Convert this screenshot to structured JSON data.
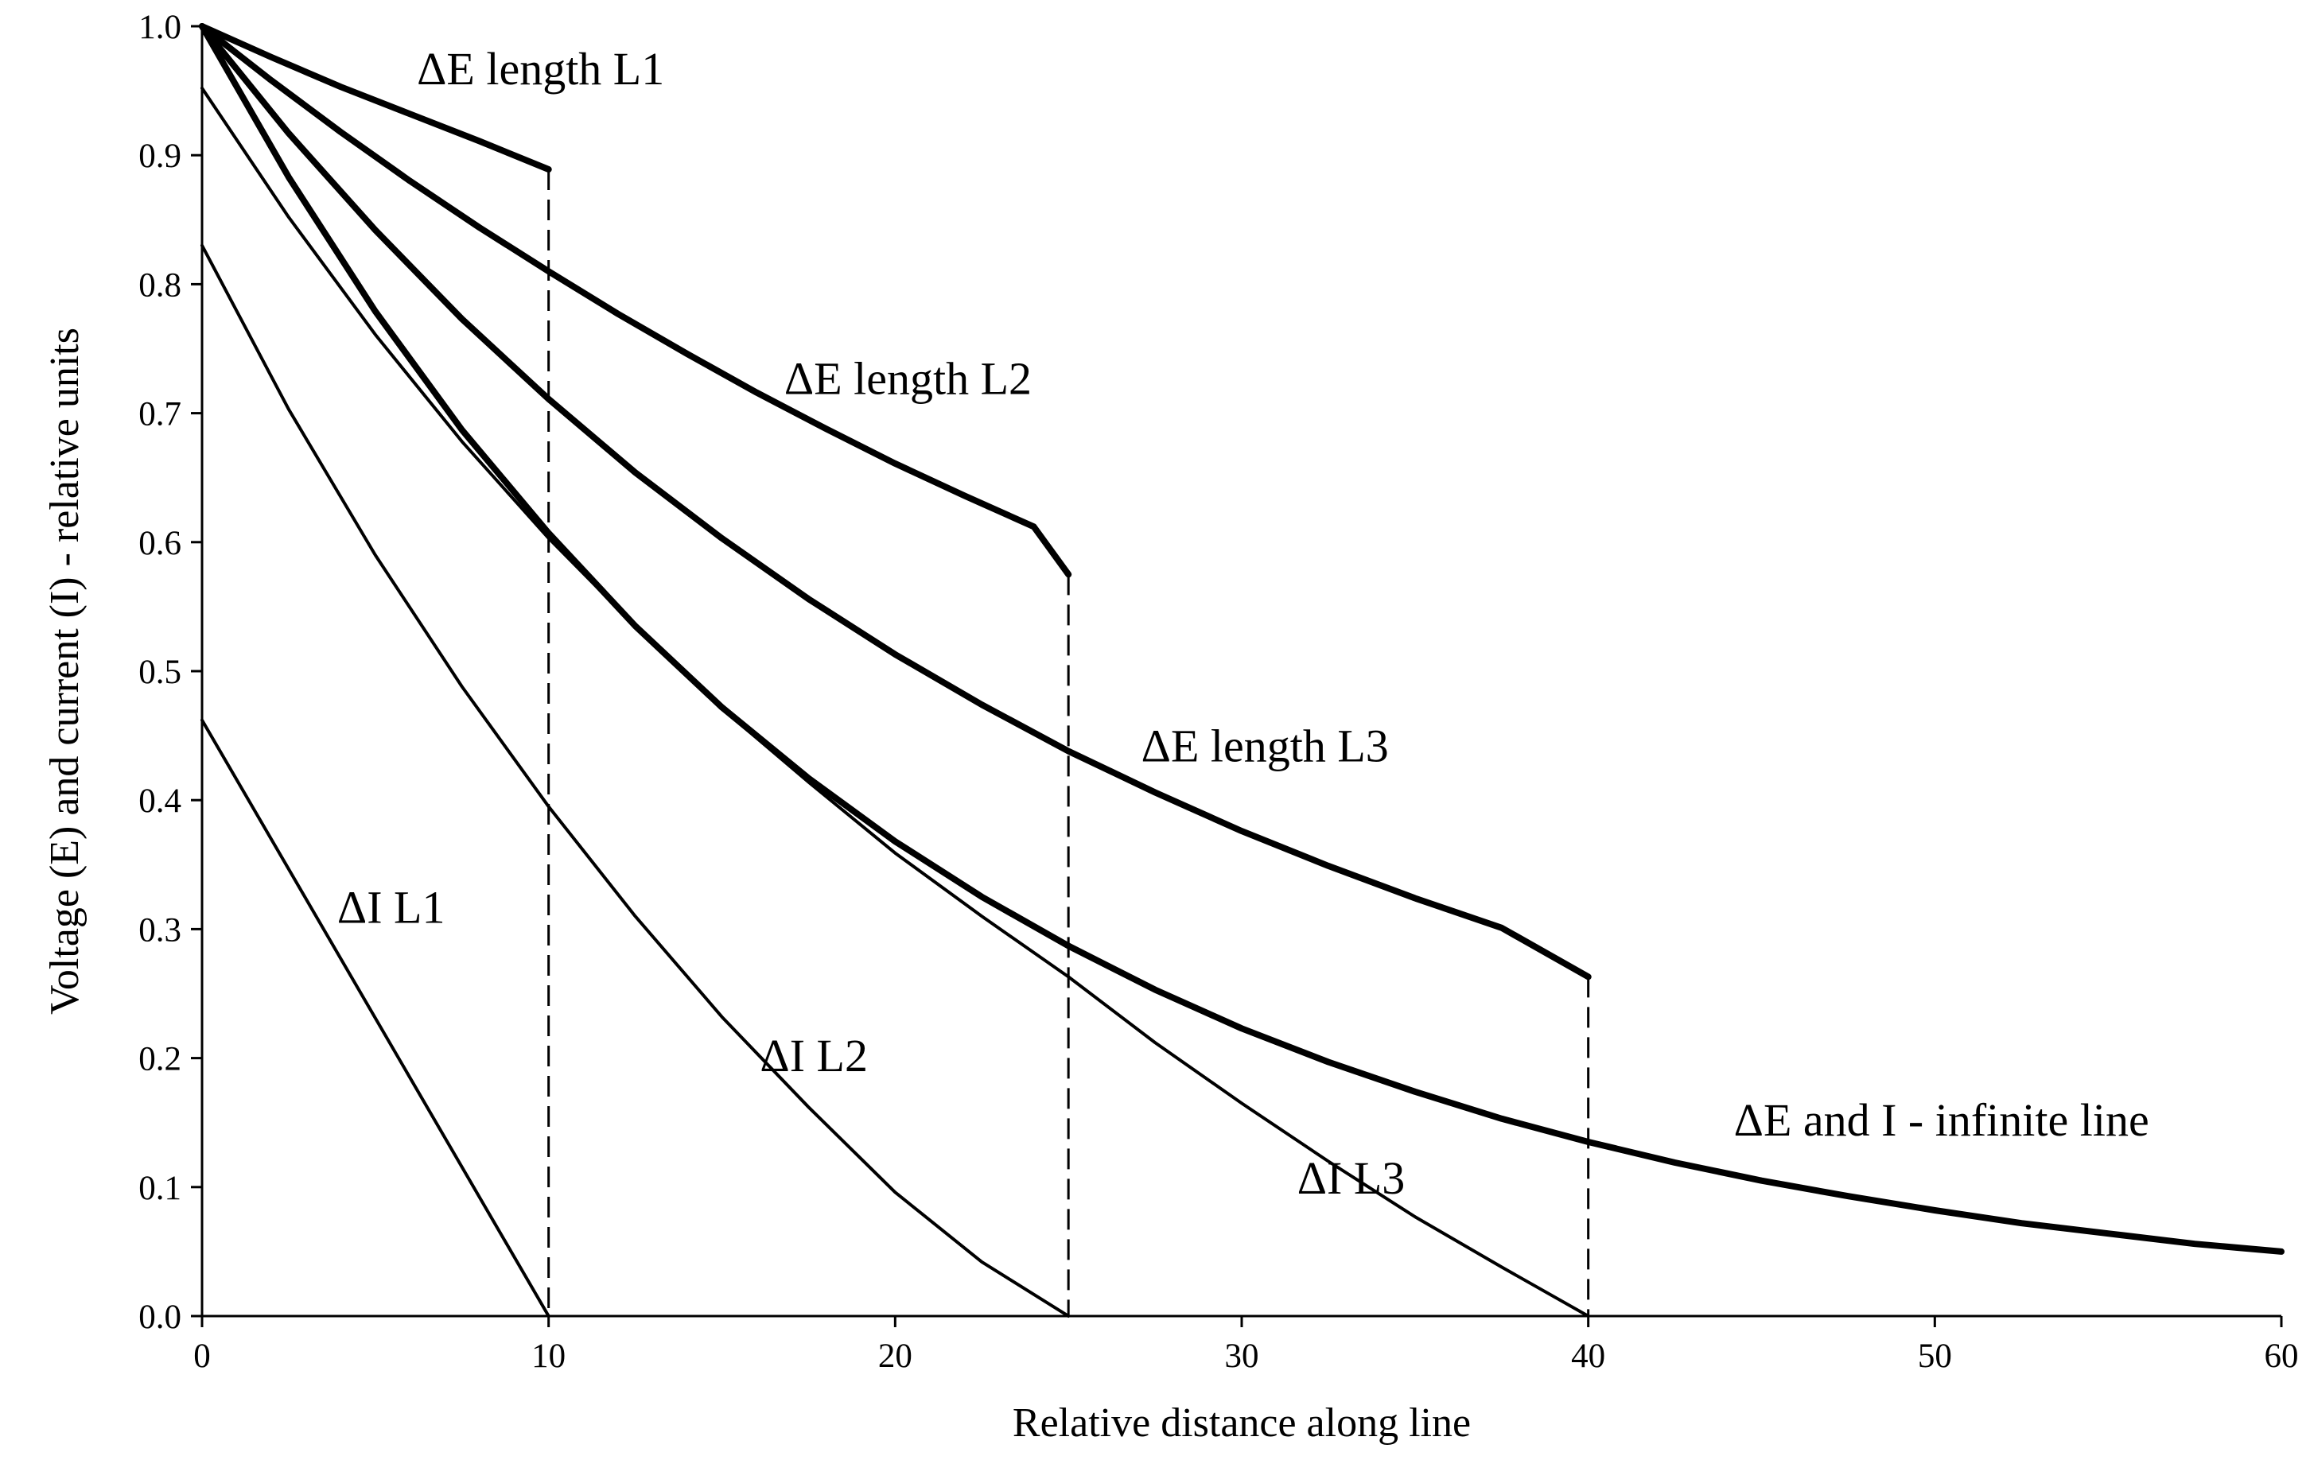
{
  "chart_data": {
    "type": "line",
    "title": "",
    "xlabel": "Relative distance along line",
    "ylabel": "Voltage (E) and current (I) - relative units",
    "xlim": [
      0,
      60
    ],
    "ylim": [
      0,
      1.0
    ],
    "x_ticks": [
      "0",
      "10",
      "20",
      "30",
      "40",
      "50",
      "60"
    ],
    "y_ticks": [
      "0.0",
      "0.1",
      "0.2",
      "0.3",
      "0.4",
      "0.5",
      "0.6",
      "0.7",
      "0.8",
      "0.9",
      "1.0"
    ],
    "grid": false,
    "legend": "none",
    "line_color": "#000000",
    "series": [
      {
        "key": "dE_L1",
        "style": "thick",
        "x": [
          0,
          2,
          4,
          6,
          8,
          10
        ],
        "y": [
          1.0,
          0.976,
          0.953,
          0.932,
          0.911,
          0.889
        ]
      },
      {
        "key": "dE_L2",
        "style": "thick",
        "x": [
          0,
          2,
          4,
          6,
          8,
          10,
          12,
          14,
          16,
          18,
          20,
          22,
          24,
          25
        ],
        "y": [
          1.0,
          0.958,
          0.918,
          0.88,
          0.844,
          0.81,
          0.777,
          0.746,
          0.716,
          0.688,
          0.661,
          0.636,
          0.612,
          0.575
        ]
      },
      {
        "key": "dE_L3",
        "style": "thick",
        "x": [
          0,
          2.5,
          5,
          7.5,
          10,
          12.5,
          15,
          17.5,
          20,
          22.5,
          25,
          27.5,
          30,
          32.5,
          35,
          37.5,
          40
        ],
        "y": [
          1.0,
          0.917,
          0.842,
          0.773,
          0.711,
          0.654,
          0.603,
          0.556,
          0.513,
          0.474,
          0.438,
          0.406,
          0.376,
          0.349,
          0.324,
          0.301,
          0.263
        ]
      },
      {
        "key": "dE_I_infinite",
        "style": "thick",
        "x": [
          0,
          2.5,
          5,
          7.5,
          10,
          12.5,
          15,
          17.5,
          20,
          22.5,
          25,
          27.5,
          30,
          32.5,
          35,
          37.5,
          40,
          42.5,
          45,
          47.5,
          50,
          52.5,
          55,
          57.5,
          60
        ],
        "y": [
          1.0,
          0.883,
          0.779,
          0.687,
          0.607,
          0.535,
          0.472,
          0.417,
          0.368,
          0.325,
          0.287,
          0.253,
          0.223,
          0.197,
          0.174,
          0.153,
          0.135,
          0.119,
          0.105,
          0.093,
          0.082,
          0.072,
          0.064,
          0.056,
          0.05
        ]
      },
      {
        "key": "dI_L3",
        "style": "thin",
        "x": [
          0,
          2.5,
          5,
          7.5,
          10,
          12.5,
          15,
          17.5,
          20,
          22.5,
          25,
          27.5,
          30,
          32.5,
          35,
          37.5,
          40
        ],
        "y": [
          0.952,
          0.852,
          0.761,
          0.678,
          0.603,
          0.535,
          0.471,
          0.414,
          0.359,
          0.31,
          0.263,
          0.212,
          0.165,
          0.12,
          0.077,
          0.038,
          0.0
        ]
      },
      {
        "key": "dI_L2",
        "style": "thin",
        "x": [
          0,
          2.5,
          5,
          7.5,
          10,
          12.5,
          15,
          17.5,
          20,
          22.5,
          25
        ],
        "y": [
          0.83,
          0.703,
          0.59,
          0.488,
          0.395,
          0.31,
          0.232,
          0.162,
          0.096,
          0.042,
          0.0
        ]
      },
      {
        "key": "dI_L1",
        "style": "thin",
        "x": [
          0,
          10
        ],
        "y": [
          0.462,
          0.0
        ]
      }
    ],
    "dashed_verticals": [
      {
        "x": 10,
        "y_top": 0.889
      },
      {
        "x": 25,
        "y_top": 0.575
      },
      {
        "x": 40,
        "y_top": 0.263
      }
    ],
    "annotations": [
      {
        "text": "ΔE length L1",
        "x": 6.2,
        "y": 0.955
      },
      {
        "text": "ΔE length L2",
        "x": 16.8,
        "y": 0.715
      },
      {
        "text": "ΔE length L3",
        "x": 27.1,
        "y": 0.43
      },
      {
        "text": "ΔI L1",
        "x": 3.9,
        "y": 0.305
      },
      {
        "text": "ΔI L2",
        "x": 16.1,
        "y": 0.19
      },
      {
        "text": "ΔI L3",
        "x": 31.6,
        "y": 0.095
      },
      {
        "text": "ΔE and I - infinite line",
        "x": 44.2,
        "y": 0.14
      }
    ]
  }
}
